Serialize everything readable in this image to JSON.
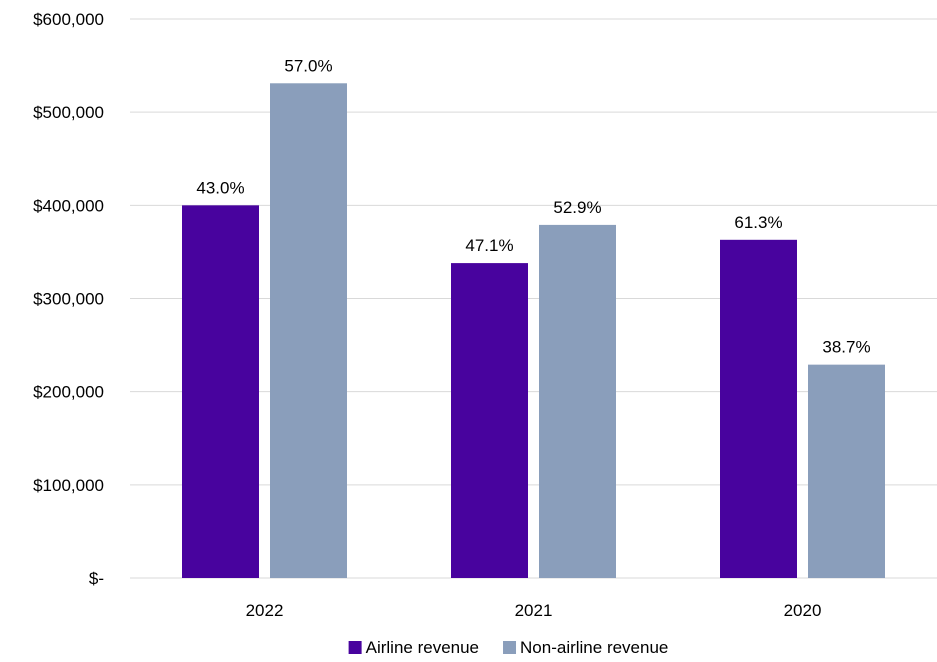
{
  "chart_data": {
    "type": "bar",
    "categories": [
      "2022",
      "2021",
      "2020"
    ],
    "series": [
      {
        "name": "Airline revenue",
        "color": "#48039e",
        "values": [
          400000,
          338000,
          363000
        ],
        "labels": [
          "43.0%",
          "47.1%",
          "61.3%"
        ]
      },
      {
        "name": "Non-airline revenue",
        "color": "#8a9ebb",
        "values": [
          531000,
          379000,
          229000
        ],
        "labels": [
          "57.0%",
          "52.9%",
          "38.7%"
        ]
      }
    ],
    "ylim": [
      0,
      600000
    ],
    "yticks": [
      0,
      100000,
      200000,
      300000,
      400000,
      500000,
      600000
    ],
    "ytick_labels": [
      "$-",
      "$100,000",
      "$200,000",
      "$300,000",
      "$400,000",
      "$500,000",
      "$600,000"
    ],
    "grid": true,
    "legend_position": "bottom",
    "title": "",
    "xlabel": "",
    "ylabel": ""
  }
}
